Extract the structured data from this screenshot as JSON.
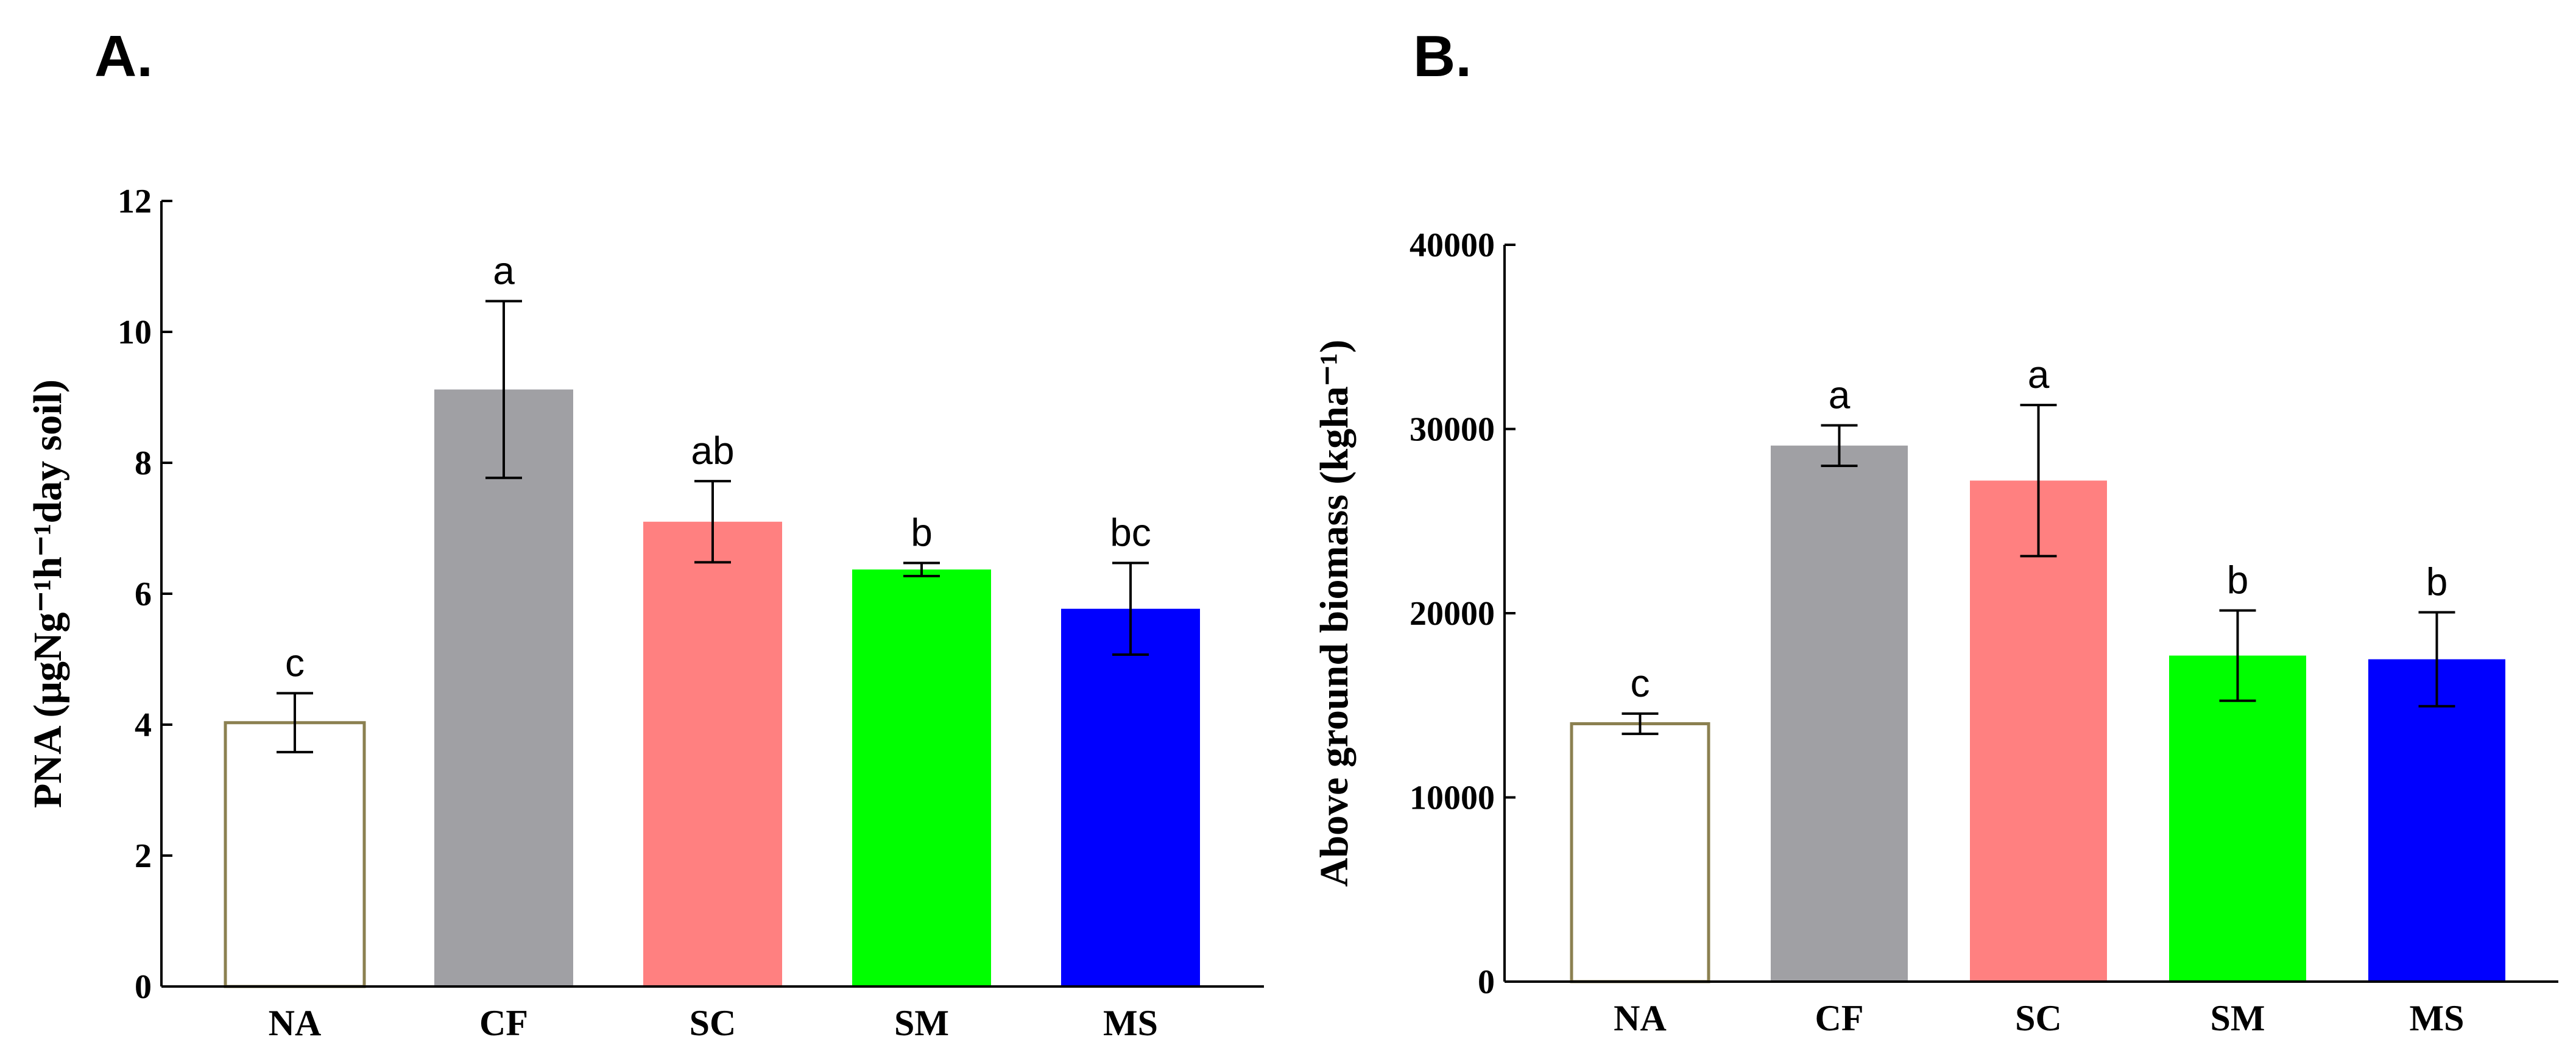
{
  "chart_data": [
    {
      "type": "bar",
      "panel_label": "A.",
      "title": "",
      "xlabel": "",
      "ylabel": "PNA (μgNg⁻¹h⁻¹day soil)",
      "ylim": [
        0,
        12
      ],
      "yticks": [
        "0",
        "2",
        "4",
        "6",
        "8",
        "10",
        "12"
      ],
      "ytick_values": [
        0,
        2,
        4,
        6,
        8,
        10,
        12
      ],
      "categories": [
        "NA",
        "CF",
        "SC",
        "SM",
        "MS"
      ],
      "values": [
        4.03,
        9.12,
        7.1,
        6.37,
        5.77
      ],
      "errors": [
        0.45,
        1.35,
        0.62,
        0.1,
        0.7
      ],
      "significance": [
        "c",
        "a",
        "ab",
        "b",
        "bc"
      ],
      "colors": [
        "#ffffff",
        "#a0a0a4",
        "#ff8080",
        "#00ff00",
        "#0000ff"
      ],
      "outline_color": "#8b8050",
      "grid": false
    },
    {
      "type": "bar",
      "panel_label": "B.",
      "title": "",
      "xlabel": "",
      "ylabel": "Above ground biomass (kgha⁻¹)",
      "ylim": [
        0,
        40000
      ],
      "yticks": [
        "0",
        "10000",
        "20000",
        "30000",
        "40000"
      ],
      "ytick_values": [
        0,
        10000,
        20000,
        30000,
        40000
      ],
      "categories": [
        "NA",
        "CF",
        "SC",
        "SM",
        "MS"
      ],
      "values": [
        14000,
        29100,
        27200,
        17700,
        17500
      ],
      "errors": [
        550,
        1100,
        4100,
        2450,
        2550
      ],
      "significance": [
        "c",
        "a",
        "a",
        "b",
        "b"
      ],
      "colors": [
        "#ffffff",
        "#a0a0a4",
        "#ff8080",
        "#00ff00",
        "#0000ff"
      ],
      "outline_color": "#8b8050",
      "grid": false
    }
  ]
}
